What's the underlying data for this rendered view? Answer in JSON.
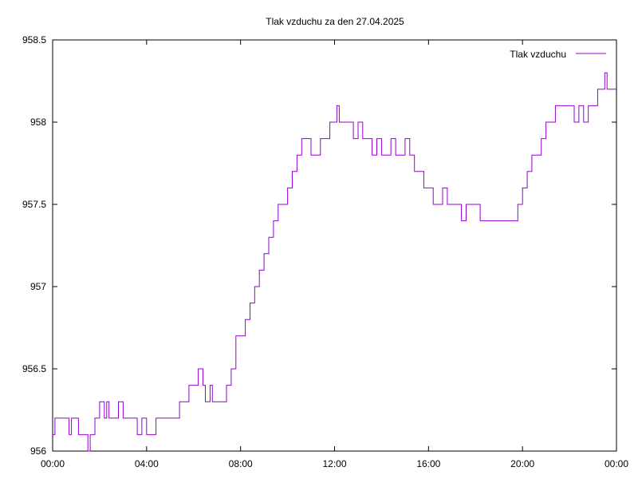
{
  "chart_data": {
    "type": "line",
    "title": "Tlak vzduchu za den 27.04.2025",
    "xlabel": "",
    "ylabel": "",
    "x_tick_labels": [
      "00:00",
      "04:00",
      "08:00",
      "12:00",
      "16:00",
      "20:00",
      "00:00"
    ],
    "x_ticks_hours": [
      0,
      4,
      8,
      12,
      16,
      20,
      24
    ],
    "y_tick_labels": [
      "956",
      "956.5",
      "957",
      "957.5",
      "958",
      "958.5"
    ],
    "y_ticks": [
      956,
      956.5,
      957,
      957.5,
      958,
      958.5
    ],
    "xlim": [
      0,
      24
    ],
    "ylim": [
      956,
      958.5
    ],
    "grid": false,
    "legend_position": "top-right",
    "series": [
      {
        "name": "Tlak vzduchu",
        "color": "#9400d3",
        "x": [
          0.0,
          0.1,
          0.2,
          0.5,
          0.7,
          0.8,
          0.9,
          1.0,
          1.1,
          1.2,
          1.4,
          1.5,
          1.6,
          1.7,
          1.8,
          1.9,
          2.0,
          2.1,
          2.2,
          2.3,
          2.4,
          2.5,
          2.6,
          2.8,
          3.0,
          3.2,
          3.4,
          3.6,
          3.8,
          4.0,
          4.2,
          4.4,
          4.6,
          4.8,
          5.0,
          5.2,
          5.4,
          5.5,
          5.6,
          5.8,
          6.0,
          6.2,
          6.4,
          6.5,
          6.6,
          6.7,
          6.8,
          7.0,
          7.2,
          7.4,
          7.6,
          7.8,
          8.0,
          8.2,
          8.4,
          8.6,
          8.8,
          9.0,
          9.2,
          9.4,
          9.6,
          9.8,
          10.0,
          10.2,
          10.4,
          10.6,
          10.8,
          11.0,
          11.2,
          11.4,
          11.6,
          11.8,
          12.0,
          12.1,
          12.2,
          12.4,
          12.6,
          12.8,
          13.0,
          13.2,
          13.4,
          13.6,
          13.8,
          14.0,
          14.2,
          14.4,
          14.6,
          14.8,
          15.0,
          15.2,
          15.4,
          15.6,
          15.8,
          16.0,
          16.2,
          16.4,
          16.6,
          16.8,
          17.0,
          17.2,
          17.4,
          17.6,
          17.8,
          18.0,
          18.2,
          18.4,
          18.6,
          18.8,
          19.0,
          19.2,
          19.4,
          19.6,
          19.8,
          20.0,
          20.2,
          20.4,
          20.6,
          20.8,
          21.0,
          21.2,
          21.4,
          21.6,
          21.8,
          22.0,
          22.2,
          22.4,
          22.6,
          22.8,
          23.0,
          23.2,
          23.4,
          23.5,
          23.6,
          23.8,
          24.0
        ],
        "y": [
          956.1,
          956.2,
          956.2,
          956.2,
          956.1,
          956.2,
          956.2,
          956.2,
          956.1,
          956.1,
          956.1,
          956.0,
          956.1,
          956.1,
          956.2,
          956.2,
          956.3,
          956.3,
          956.2,
          956.3,
          956.2,
          956.2,
          956.2,
          956.3,
          956.2,
          956.2,
          956.2,
          956.1,
          956.2,
          956.1,
          956.1,
          956.2,
          956.2,
          956.2,
          956.2,
          956.2,
          956.3,
          956.3,
          956.3,
          956.4,
          956.4,
          956.5,
          956.4,
          956.3,
          956.3,
          956.4,
          956.3,
          956.3,
          956.3,
          956.4,
          956.5,
          956.7,
          956.7,
          956.8,
          956.9,
          957.0,
          957.1,
          957.2,
          957.3,
          957.4,
          957.5,
          957.5,
          957.6,
          957.7,
          957.8,
          957.9,
          957.9,
          957.8,
          957.8,
          957.9,
          957.9,
          958.0,
          958.0,
          958.1,
          958.0,
          958.0,
          958.0,
          957.9,
          958.0,
          957.9,
          957.9,
          957.8,
          957.9,
          957.8,
          957.8,
          957.9,
          957.8,
          957.8,
          957.9,
          957.8,
          957.7,
          957.7,
          957.6,
          957.6,
          957.5,
          957.5,
          957.6,
          957.5,
          957.5,
          957.5,
          957.4,
          957.5,
          957.5,
          957.5,
          957.4,
          957.4,
          957.4,
          957.4,
          957.4,
          957.4,
          957.4,
          957.4,
          957.5,
          957.6,
          957.7,
          957.8,
          957.8,
          957.9,
          958.0,
          958.0,
          958.1,
          958.1,
          958.1,
          958.1,
          958.0,
          958.1,
          958.0,
          958.1,
          958.1,
          958.2,
          958.2,
          958.3,
          958.2,
          958.2,
          958.2
        ]
      }
    ]
  }
}
